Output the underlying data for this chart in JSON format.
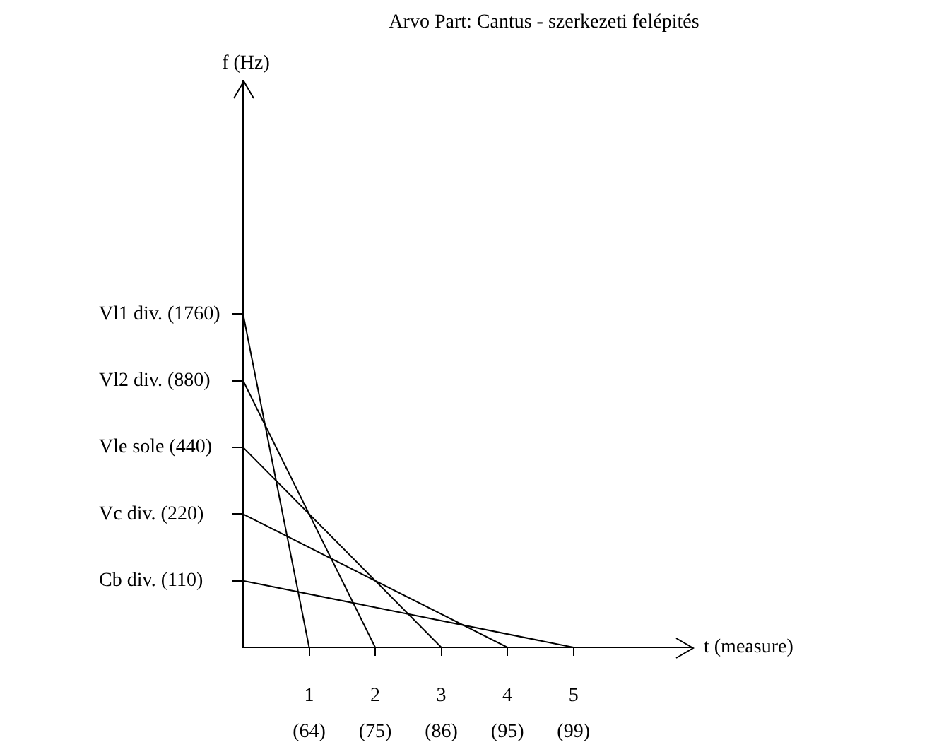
{
  "chart_data": {
    "type": "line",
    "title": "Arvo Part: Cantus - szerkezeti felépités",
    "xlabel": "t (measure)",
    "ylabel": "f (Hz)",
    "xlim": [
      0,
      6.8
    ],
    "xticks": [
      1,
      2,
      3,
      4,
      5
    ],
    "log": "y",
    "ylim": [
      55,
      19900
    ],
    "yticks": [
      {
        "value": 110,
        "label": "Cb div. (110)"
      },
      {
        "value": 220,
        "label": "Vc div. (220)"
      },
      {
        "value": 440,
        "label": "Vle sole (440)"
      },
      {
        "value": 880,
        "label": "Vl2 div. (880)"
      },
      {
        "value": 1760,
        "label": "Vl1 div. (1760)"
      }
    ],
    "annotations": [
      "(64)",
      "(75)",
      "(86)",
      "(95)",
      "(99)"
    ],
    "grid": false,
    "legend": false,
    "marker": "none",
    "line_style": "solid",
    "series": [
      {
        "color": "#000000",
        "x": [
          0,
          1
        ],
        "values": [
          1760,
          55
        ]
      },
      {
        "color": "#000000",
        "x": [
          0,
          2
        ],
        "values": [
          880,
          55
        ]
      },
      {
        "color": "#000000",
        "x": [
          0,
          3
        ],
        "values": [
          440,
          55
        ]
      },
      {
        "color": "#000000",
        "x": [
          0,
          4
        ],
        "values": [
          220,
          55
        ]
      },
      {
        "color": "#000000",
        "x": [
          0,
          5
        ],
        "values": [
          110,
          55
        ]
      }
    ]
  }
}
